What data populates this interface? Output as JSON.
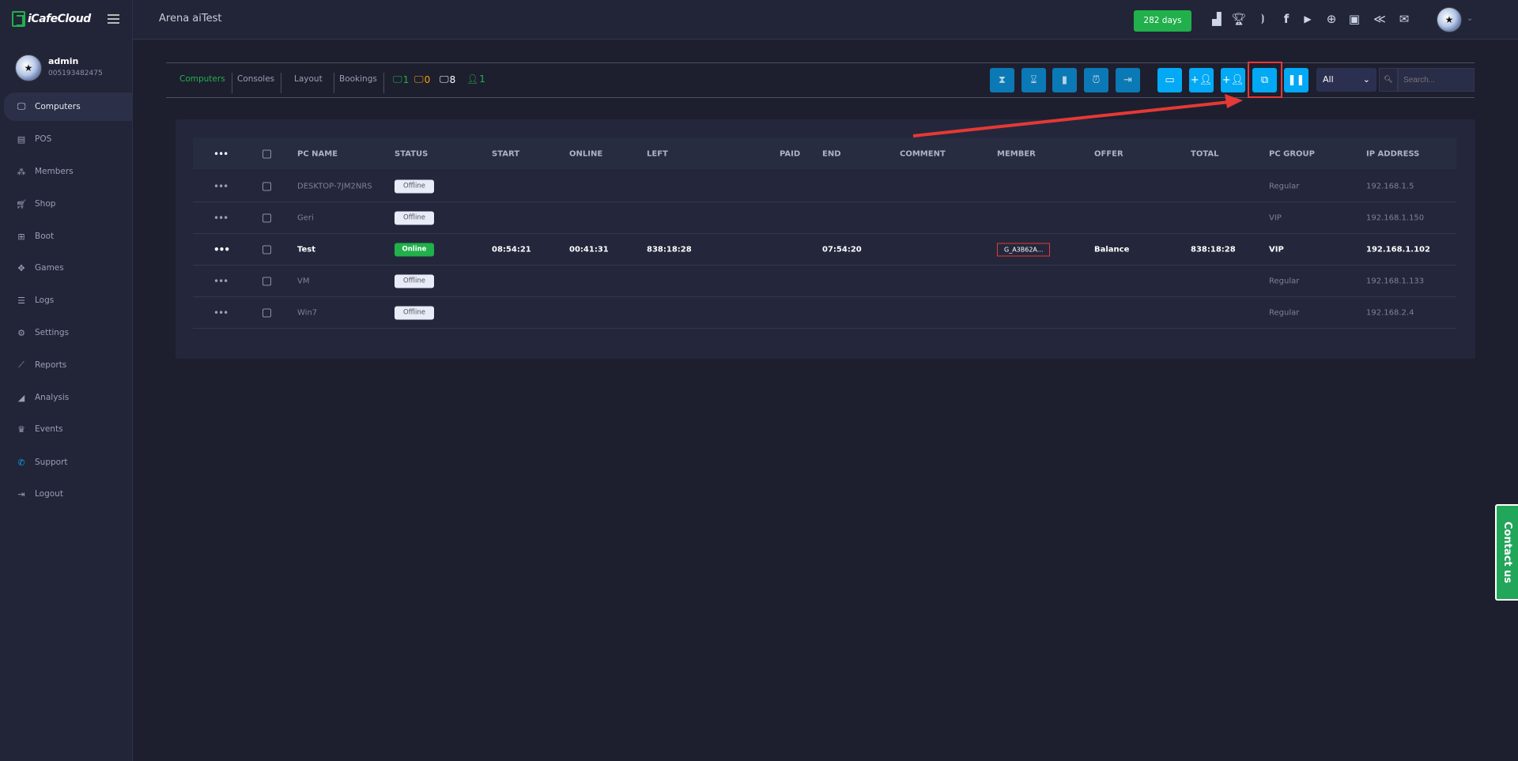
{
  "brand": {
    "name": "iCafeCloud",
    "accent": "#21b04b"
  },
  "header": {
    "title": "Arena aiTest",
    "days_label": "282 days",
    "icons": [
      "leaderboard-icon",
      "trophy-icon",
      "rss-icon",
      "facebook-icon",
      "youtube-icon",
      "globe-icon",
      "icafe-logo-icon",
      "ggrock-icon",
      "mail-icon"
    ]
  },
  "user": {
    "name": "admin",
    "id": "005193482475"
  },
  "sidebar": {
    "items": [
      {
        "label": "Computers",
        "icon": "monitor-icon",
        "active": true
      },
      {
        "label": "POS",
        "icon": "cash-register-icon"
      },
      {
        "label": "Members",
        "icon": "users-icon"
      },
      {
        "label": "Shop",
        "icon": "cart-icon"
      },
      {
        "label": "Boot",
        "icon": "windows-icon"
      },
      {
        "label": "Games",
        "icon": "gamepad-icon"
      },
      {
        "label": "Logs",
        "icon": "list-icon"
      },
      {
        "label": "Settings",
        "icon": "gear-icon"
      },
      {
        "label": "Reports",
        "icon": "line-chart-icon"
      },
      {
        "label": "Analysis",
        "icon": "area-chart-icon"
      },
      {
        "label": "Events",
        "icon": "crown-icon"
      },
      {
        "label": "Support",
        "icon": "phone-icon"
      },
      {
        "label": "Logout",
        "icon": "logout-icon"
      }
    ]
  },
  "toolbar": {
    "tabs": [
      "Computers",
      "Consoles",
      "Layout",
      "Bookings"
    ],
    "counts": {
      "online": "1",
      "busy": "0",
      "total": "8",
      "members": "1"
    },
    "filter": "All",
    "search_placeholder": "Search..."
  },
  "table": {
    "headers": [
      "PC NAME",
      "STATUS",
      "START",
      "ONLINE",
      "LEFT",
      "PAID",
      "END",
      "COMMENT",
      "MEMBER",
      "OFFER",
      "TOTAL",
      "PC GROUP",
      "IP ADDRESS"
    ],
    "rows": [
      {
        "name": "DESKTOP-7JM2NRS",
        "status": "Offline",
        "start": "",
        "online": "",
        "left": "",
        "paid": "",
        "end": "",
        "comment": "",
        "member": "",
        "offer": "",
        "total": "",
        "group": "Regular",
        "ip": "192.168.1.5"
      },
      {
        "name": "Geri",
        "status": "Offline",
        "start": "",
        "online": "",
        "left": "",
        "paid": "",
        "end": "",
        "comment": "",
        "member": "",
        "offer": "",
        "total": "",
        "group": "VIP",
        "ip": "192.168.1.150"
      },
      {
        "name": "Test",
        "status": "Online",
        "start": "08:54:21",
        "online": "00:41:31",
        "left": "838:18:28",
        "paid": "",
        "end": "07:54:20",
        "comment": "",
        "member": "G_A3B62A...",
        "offer": "Balance",
        "total": "838:18:28",
        "group": "VIP",
        "ip": "192.168.1.102"
      },
      {
        "name": "VM",
        "status": "Offline",
        "start": "",
        "online": "",
        "left": "",
        "paid": "",
        "end": "",
        "comment": "",
        "member": "",
        "offer": "",
        "total": "",
        "group": "Regular",
        "ip": "192.168.1.133"
      },
      {
        "name": "Win7",
        "status": "Offline",
        "start": "",
        "online": "",
        "left": "",
        "paid": "",
        "end": "",
        "comment": "",
        "member": "",
        "offer": "",
        "total": "",
        "group": "Regular",
        "ip": "192.168.2.4"
      }
    ]
  },
  "contact": "Contact us"
}
